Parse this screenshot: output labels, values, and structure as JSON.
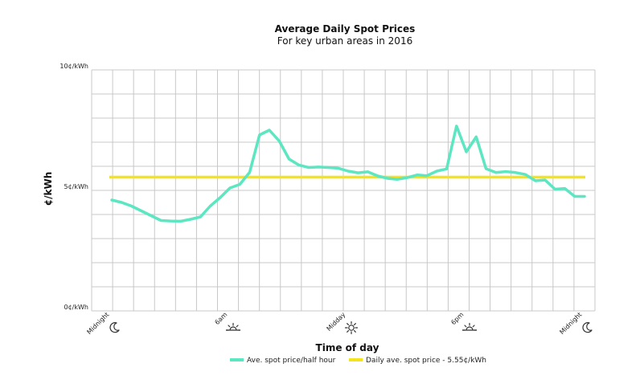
{
  "chart_data": {
    "type": "line",
    "title": "Average Daily Spot Prices",
    "subtitle": "For key urban areas in 2016",
    "xlabel": "Time of day",
    "ylabel": "¢/kWh",
    "ylim": [
      0,
      10
    ],
    "yticks": [
      {
        "value": 0,
        "label": "0¢/kWh"
      },
      {
        "value": 5,
        "label": "5¢/kWh"
      },
      {
        "value": 10,
        "label": "10¢/kWh"
      }
    ],
    "xticks": [
      {
        "hour": 0,
        "label": "Midnight",
        "icon": "moon-icon"
      },
      {
        "hour": 6,
        "label": "6am",
        "icon": "sunrise-icon"
      },
      {
        "hour": 12,
        "label": "Midday",
        "icon": "sun-icon"
      },
      {
        "hour": 18,
        "label": "6pm",
        "icon": "sunset-icon"
      },
      {
        "hour": 24,
        "label": "Midnight",
        "icon": "moon-icon"
      }
    ],
    "grid": true,
    "legend_position": "bottom",
    "series": [
      {
        "name": "Ave. spot price/half hour",
        "color": "#5ce6c2",
        "x": [
          0,
          0.5,
          1,
          1.5,
          2,
          2.5,
          3,
          3.5,
          4,
          4.5,
          5,
          5.5,
          6,
          6.5,
          7,
          7.5,
          8,
          8.5,
          9,
          9.5,
          10,
          10.5,
          11,
          11.5,
          12,
          12.5,
          13,
          13.5,
          14,
          14.5,
          15,
          15.5,
          16,
          16.5,
          17,
          17.5,
          18,
          18.5,
          19,
          19.5,
          20,
          20.5,
          21,
          21.5,
          22,
          22.5,
          23,
          23.5,
          24
        ],
        "values": [
          4.6,
          4.5,
          4.35,
          4.15,
          3.95,
          3.75,
          3.73,
          3.72,
          3.8,
          3.9,
          4.35,
          4.7,
          5.1,
          5.25,
          5.75,
          7.3,
          7.5,
          7.05,
          6.3,
          6.05,
          5.95,
          5.97,
          5.95,
          5.92,
          5.8,
          5.73,
          5.77,
          5.6,
          5.5,
          5.46,
          5.53,
          5.64,
          5.61,
          5.8,
          5.89,
          7.67,
          6.6,
          7.22,
          5.9,
          5.74,
          5.78,
          5.74,
          5.66,
          5.4,
          5.43,
          5.05,
          5.08,
          4.75,
          4.75
        ]
      },
      {
        "name": "Daily ave. spot price - 5.55¢/kWh",
        "color": "#f5e31d",
        "x": [
          0,
          24
        ],
        "values": [
          5.55,
          5.55
        ]
      }
    ]
  }
}
